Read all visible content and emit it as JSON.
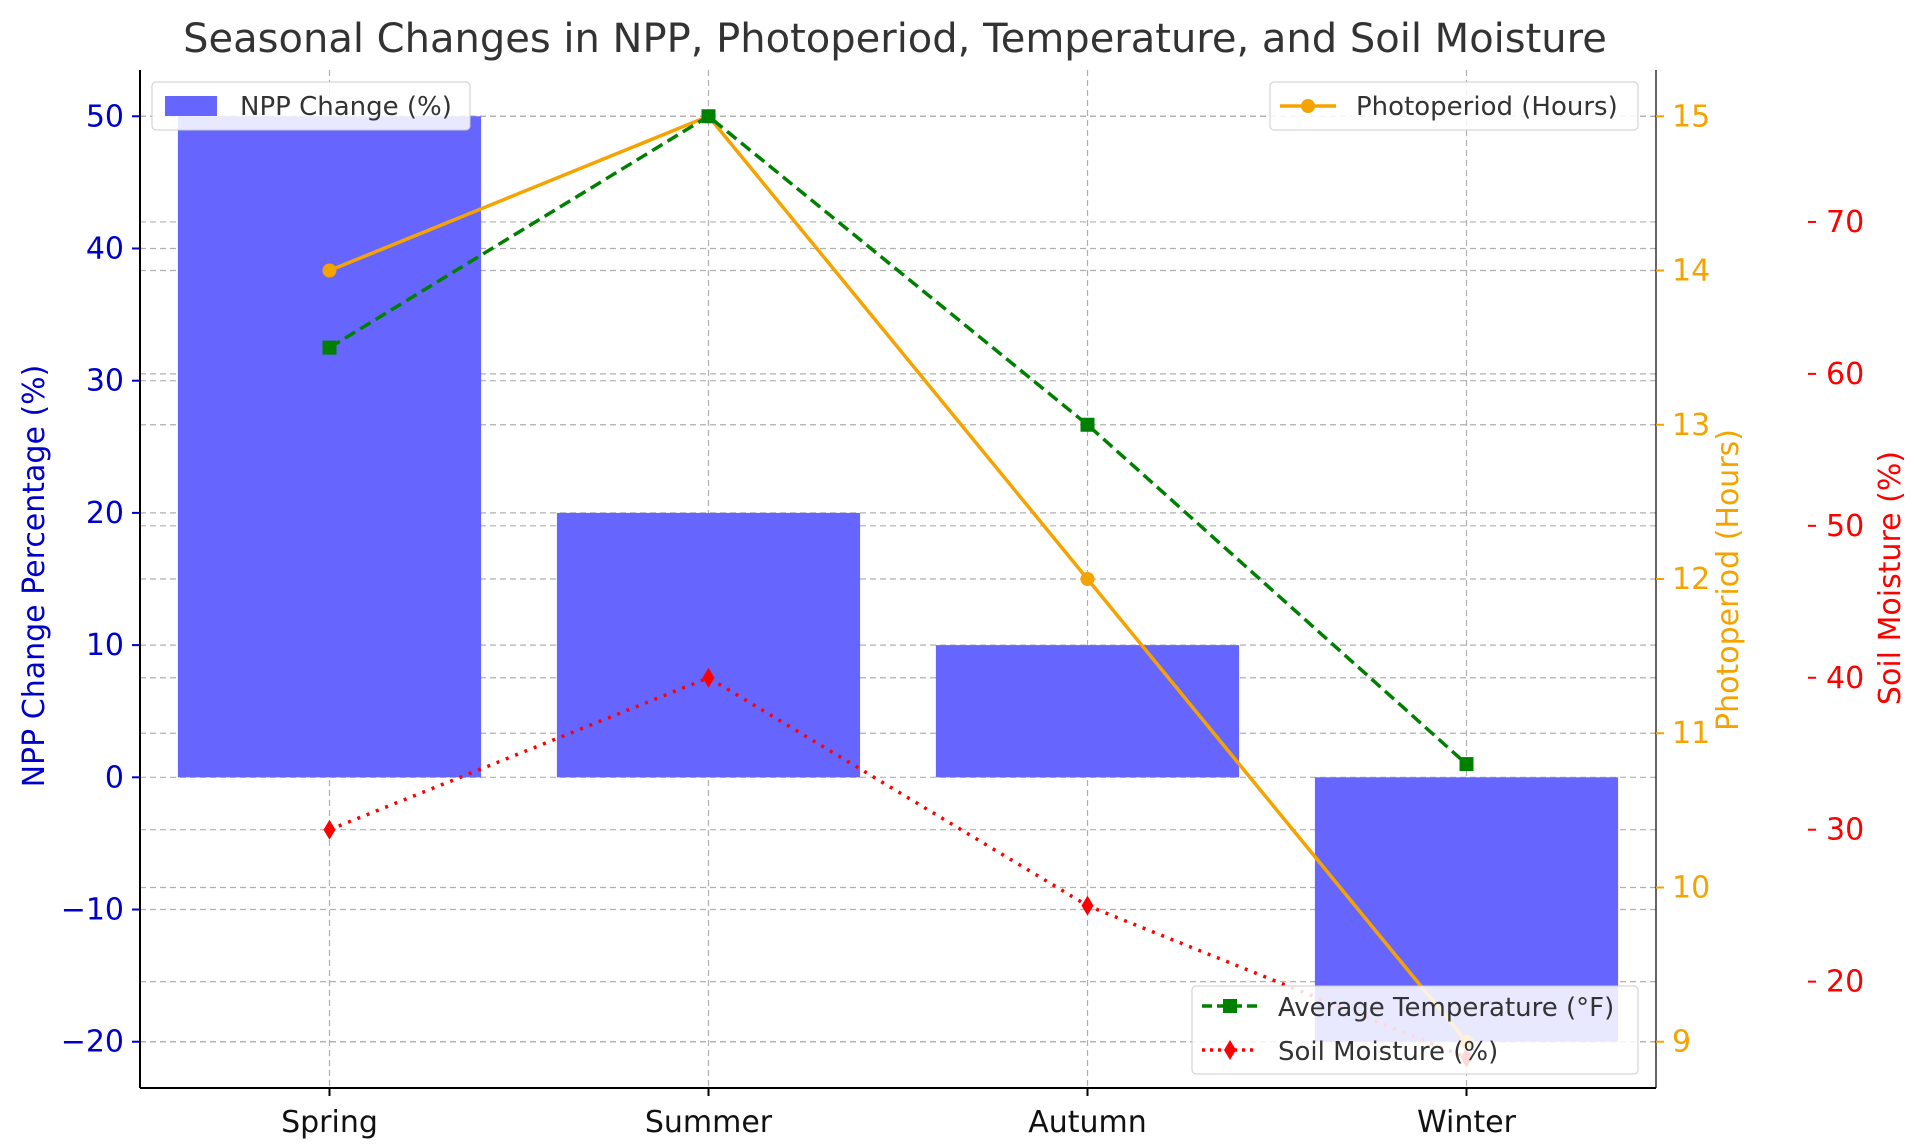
{
  "chart_data": {
    "type": "bar",
    "title": "Seasonal Changes in NPP, Photoperiod, Temperature, and Soil Moisture",
    "categories": [
      "Spring",
      "Summer",
      "Autumn",
      "Winter"
    ],
    "y_left": {
      "label": "NPP Change Percentage (%)",
      "color": "#0000cc",
      "lim": [
        -23.5,
        53.5
      ],
      "ticks": [
        50,
        40,
        30,
        20,
        10,
        0,
        -10,
        -20
      ],
      "tick_labels": [
        "50",
        "40",
        "30",
        "20",
        "10",
        "0",
        "−10",
        "−20"
      ]
    },
    "y_right1": {
      "label": "Photoperiod (Hours)",
      "color": "#f5a300",
      "lim": [
        8.7,
        15.3
      ],
      "ticks": [
        15,
        14,
        13,
        12,
        11,
        10,
        9
      ],
      "tick_labels": [
        "15",
        "14",
        "13",
        "12",
        "11",
        "10",
        "9"
      ]
    },
    "y_right2": {
      "label": "Soil Moisture (%)",
      "color": "#ff0000",
      "lim": [
        13,
        80
      ],
      "ticks": [
        70,
        60,
        50,
        40,
        30,
        20
      ],
      "tick_labels": [
        "70",
        "60",
        "50",
        "40",
        "30",
        "20"
      ]
    },
    "series": [
      {
        "name": "NPP Change (%)",
        "kind": "bar",
        "axis": "left",
        "color": "#6666ff",
        "values": [
          50,
          20,
          10,
          -20
        ]
      },
      {
        "name": "Photoperiod (Hours)",
        "kind": "line",
        "axis": "right1",
        "color": "#f5a300",
        "marker": "circle",
        "linestyle": "solid",
        "values": [
          14,
          15,
          12,
          9
        ]
      },
      {
        "name": "Average Temperature (°F)",
        "kind": "line",
        "axis": "right1",
        "color": "#008000",
        "marker": "square",
        "linestyle": "dashed",
        "values": [
          13.5,
          15,
          13,
          10.8
        ]
      },
      {
        "name": "Soil Moisture (%)",
        "kind": "line",
        "axis": "right2",
        "color": "#ff0000",
        "marker": "diamond",
        "linestyle": "dotted",
        "values": [
          30,
          40,
          25,
          15
        ]
      }
    ],
    "grid": true,
    "legends": [
      {
        "placement": "top-left",
        "entries": [
          "NPP Change (%)"
        ]
      },
      {
        "placement": "top-right",
        "entries": [
          "Photoperiod (Hours)"
        ]
      },
      {
        "placement": "bottom-right",
        "entries": [
          "Average Temperature (°F)",
          "Soil Moisture (%)"
        ]
      }
    ]
  }
}
